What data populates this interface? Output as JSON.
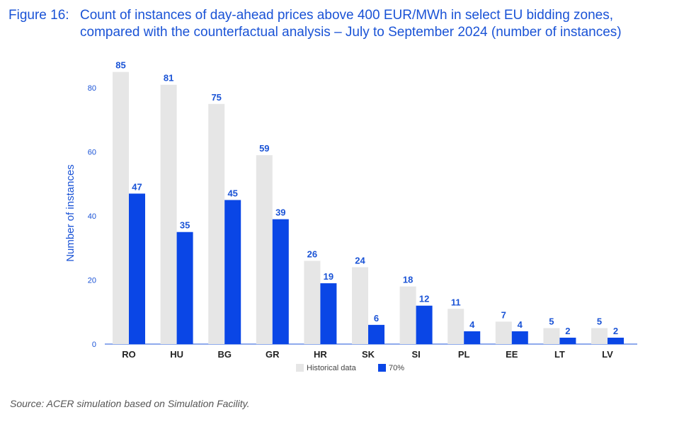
{
  "title": {
    "figure_label": "Figure 16:",
    "line1": "Count of instances of day-ahead prices above 400 EUR/MWh in select EU bidding zones,",
    "line2": "compared with the counterfactual analysis – July to September 2024 (number of instances)"
  },
  "chart_data": {
    "type": "bar",
    "title": "Count of instances of day-ahead prices above 400 EUR/MWh in select EU bidding zones, compared with the counterfactual analysis – July to September 2024 (number of instances)",
    "xlabel": "",
    "ylabel": "Number of instances",
    "ylim": [
      0,
      90
    ],
    "yticks": [
      0,
      20,
      40,
      60,
      80
    ],
    "grid": false,
    "legend_position": "bottom-center",
    "categories": [
      "RO",
      "HU",
      "BG",
      "GR",
      "HR",
      "SK",
      "SI",
      "PL",
      "EE",
      "LT",
      "LV"
    ],
    "series": [
      {
        "name": "Historical data",
        "color": "#e6e6e6",
        "label_color": "#1a53d6",
        "values": [
          85,
          81,
          75,
          59,
          26,
          24,
          18,
          11,
          7,
          5,
          5
        ]
      },
      {
        "name": "70%",
        "color": "#0a46e6",
        "label_color": "#1a53d6",
        "values": [
          47,
          35,
          45,
          39,
          19,
          6,
          12,
          4,
          4,
          2,
          2
        ]
      }
    ]
  },
  "colors": {
    "accent": "#1a53d6",
    "axis": "#4a78e0"
  },
  "source": "Source: ACER simulation based on Simulation Facility."
}
